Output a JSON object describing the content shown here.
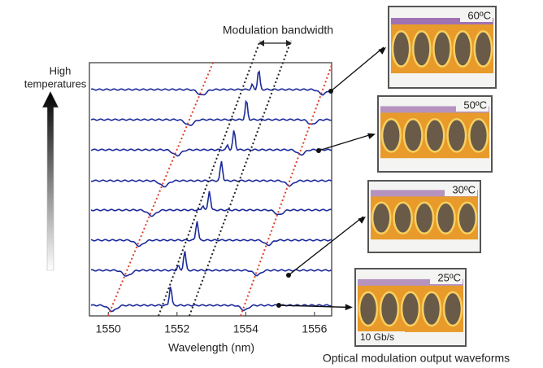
{
  "chart_data": {
    "type": "line",
    "xlabel": "Wavelength (nm)",
    "xlim": [
      1549.45,
      1556.5
    ],
    "xticks": [
      1550,
      1552,
      1554,
      1556
    ],
    "annotations": {
      "bandwidth": "Modulation bandwidth",
      "arrow_top": "High",
      "arrow_bottom": "temperatures"
    },
    "eye_diagrams": [
      {
        "label": "60ºC"
      },
      {
        "label": "50ºC"
      },
      {
        "label": "30ºC"
      },
      {
        "label": "25ºC"
      }
    ],
    "bit_rate": "10 Gb/s",
    "caption": "Optical modulation output waveforms"
  }
}
